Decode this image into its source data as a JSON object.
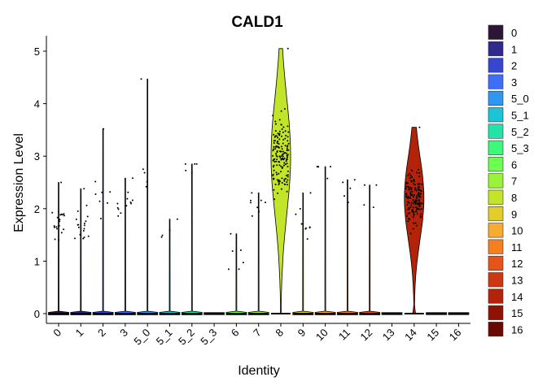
{
  "chart_data": {
    "type": "violin",
    "title": "CALD1",
    "xlabel": "Identity",
    "ylabel": "Expression Level",
    "ylim": [
      -0.2,
      5.3
    ],
    "yticks": [
      0,
      1,
      2,
      3,
      4,
      5
    ],
    "grid": false,
    "legend_position": "right",
    "categories": [
      "0",
      "1",
      "2",
      "3",
      "5_0",
      "5_1",
      "5_2",
      "5_3",
      "6",
      "7",
      "8",
      "9",
      "10",
      "11",
      "12",
      "13",
      "14",
      "15",
      "16"
    ],
    "colors": [
      "#2b1637",
      "#2f2a8c",
      "#3746cf",
      "#3f6df7",
      "#2f97f1",
      "#1bc4d6",
      "#22e4a8",
      "#3ef87a",
      "#6dfe52",
      "#9af33a",
      "#c3e529",
      "#e2cd2c",
      "#f8ab31",
      "#f77f1f",
      "#e5541b",
      "#cc3811",
      "#b2230a",
      "#8f1204",
      "#6b0802"
    ],
    "max_values": [
      2.5,
      2.38,
      3.52,
      2.58,
      4.47,
      1.8,
      2.85,
      0,
      1.52,
      2.3,
      5.05,
      2.3,
      2.8,
      2.55,
      2.45,
      0,
      3.55,
      0,
      0
    ],
    "cell_fraction_nonzero": [
      0.3,
      0.25,
      0.08,
      0.15,
      0.04,
      0.02,
      0.04,
      0,
      0.05,
      0.08,
      0.98,
      0.1,
      0.03,
      0.03,
      0.02,
      0,
      0.95,
      0,
      0
    ],
    "median_expressing": [
      1.7,
      1.7,
      2.2,
      2.0,
      2.4,
      1.5,
      2.7,
      0,
      1.0,
      2.2,
      3.0,
      1.8,
      2.7,
      2.3,
      2.4,
      0,
      2.2,
      0,
      0
    ]
  }
}
